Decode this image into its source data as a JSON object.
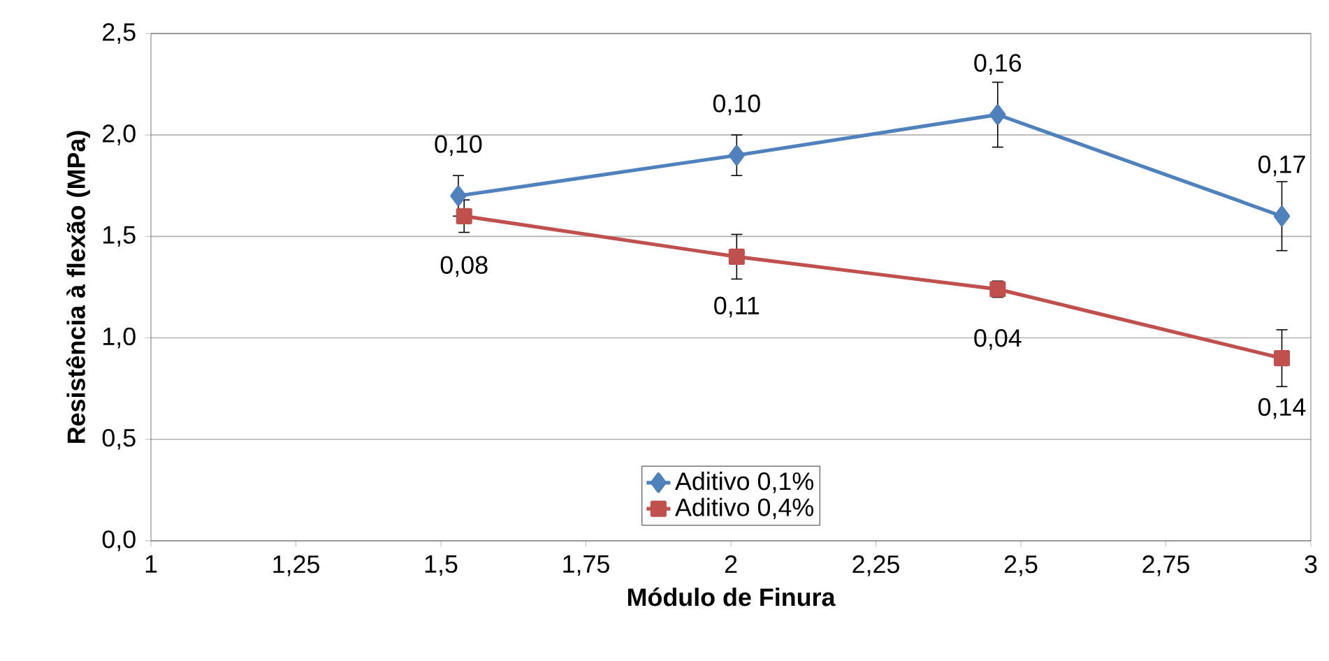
{
  "chart_data": {
    "type": "line",
    "xlabel": "Módulo de Finura",
    "ylabel": "Resistência à flexão (MPa)",
    "xlim": [
      1,
      3
    ],
    "xticks": [
      1,
      {
        "value": 1.25,
        "label": "1,25"
      },
      {
        "value": 1.5,
        "label": "1,5"
      },
      {
        "value": 1.75,
        "label": "1,75"
      },
      2,
      {
        "value": 2.25,
        "label": "2,25"
      },
      {
        "value": 2.5,
        "label": "2,5"
      },
      {
        "value": 2.75,
        "label": "2,75"
      },
      3
    ],
    "ylim": [
      0,
      2.5
    ],
    "yticks": [
      {
        "value": 0,
        "label": "0,0"
      },
      {
        "value": 0.5,
        "label": "0,5"
      },
      {
        "value": 1.0,
        "label": "1,0"
      },
      {
        "value": 1.5,
        "label": "1,5"
      },
      {
        "value": 2.0,
        "label": "2,0"
      },
      {
        "value": 2.5,
        "label": "2,5"
      }
    ],
    "annotations": [
      {
        "text": "0,10",
        "x": 1.53,
        "y": 1.7
      },
      {
        "text": "0,10",
        "x": 2.01,
        "y": 1.9
      },
      {
        "text": "0,16",
        "x": 2.46,
        "y": 2.1
      },
      {
        "text": "0,17",
        "x": 2.95,
        "y": 1.6
      },
      {
        "text": "0,08",
        "x": 1.54,
        "y": 1.6
      },
      {
        "text": "0,11",
        "x": 2.01,
        "y": 1.4
      },
      {
        "text": "0,04",
        "x": 2.46,
        "y": 1.24
      },
      {
        "text": "0,14",
        "x": 2.95,
        "y": 0.9
      }
    ],
    "grid": "y",
    "legend": "bottom",
    "line_style": "solid",
    "series": [
      {
        "name": "Aditivo 0,1%",
        "color": "#4f81bd",
        "marker": "diamond",
        "x": [
          1.53,
          2.01,
          2.46,
          2.95
        ],
        "values": [
          1.7,
          1.9,
          2.1,
          1.6
        ],
        "errors": [
          0.1,
          0.1,
          0.16,
          0.17
        ]
      },
      {
        "name": "Aditivo 0,4%",
        "color": "#c0504d",
        "marker": "square",
        "x": [
          1.54,
          2.01,
          2.46,
          2.95
        ],
        "values": [
          1.6,
          1.4,
          1.24,
          0.9
        ],
        "errors": [
          0.08,
          0.11,
          0.04,
          0.14
        ]
      }
    ]
  }
}
